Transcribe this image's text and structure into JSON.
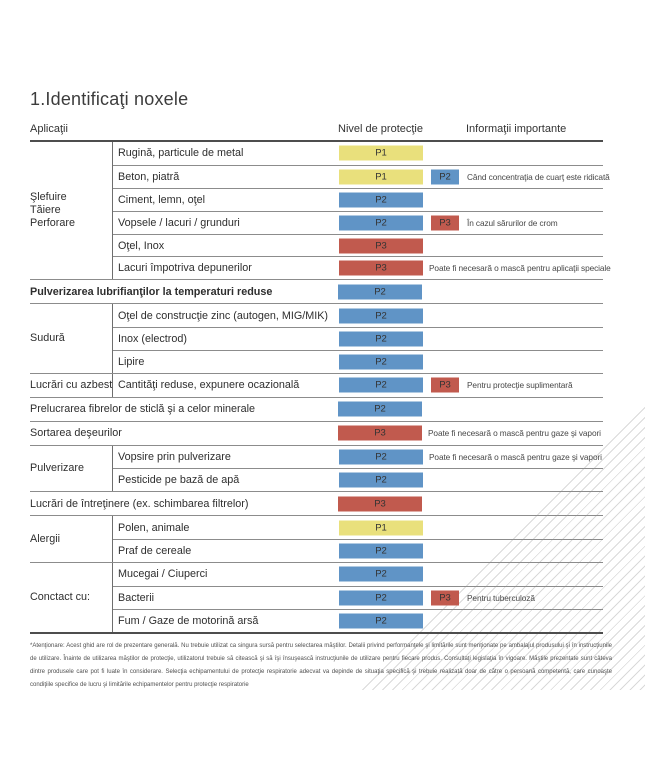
{
  "page": {
    "title": "1.Identificaţi noxele",
    "columns": {
      "applications": "Aplicaţii",
      "protection": "Nivel de protecţie",
      "info": "Informaţii importante"
    },
    "footnote": "*Atenţionare: Acest ghid are rol de prezentare generală. Nu trebuie utilizat ca singura sursă pentru selectarea măştilor. Detalii privind performanţele şi limitările sunt menţionate pe ambalajul produsului şi în instrucţiunile de utilizare. Înainte de utilizarea măştilor de protecţie, utilizatorul trebuie să citească şi să îşi însuşească instrucţiunile de utilizare pentru fiecare produs. Consultaţi legislaţia în vigoare. Măştile prezentate sunt câteva dintre produsele care pot fi luate în considerare. Selecţia echipamentului de protecţie respiratorie adecvat va depinde de situaţia specifică şi trebuie realizată doar de către o persoană competentă, care cunoaşte condiţiile specifice de lucru şi limitările echipamentelor pentru protecţie respiratorie"
  },
  "colors": {
    "p1": "#e9e07c",
    "p2": "#6094c6",
    "p3": "#c15a4e",
    "row_line": "#8c8c8c",
    "strong_line": "#4d4d4d"
  },
  "table": {
    "groups": [
      {
        "category": "Şlefuire\nTăiere\nPerforare",
        "rows": [
          {
            "label": "Rugină, particule de metal",
            "level": "P1"
          },
          {
            "label": "Beton, piatră",
            "level": "P1",
            "extra_level": "P2",
            "info": "Când concentraţia de cuarţ este ridicată"
          },
          {
            "label": "Ciment, lemn, oţel",
            "level": "P2"
          },
          {
            "label": "Vopsele / lacuri / grunduri",
            "level": "P2",
            "extra_level": "P3",
            "info": "În cazul sărurilor de crom"
          },
          {
            "label": "Oţel, Inox",
            "level": "P3"
          },
          {
            "label": "Lacuri împotriva depunerilor",
            "level": "P3",
            "info": "Poate fi necesară o mască pentru aplicaţii speciale"
          }
        ]
      },
      {
        "category": null,
        "bold": true,
        "rows": [
          {
            "label": "Pulverizarea lubrifianţilor la temperaturi reduse",
            "level": "P2"
          }
        ]
      },
      {
        "category": "Sudură",
        "rows": [
          {
            "label": "Oţel de construcţie zinc (autogen, MIG/MIK)",
            "level": "P2"
          },
          {
            "label": "Inox (electrod)",
            "level": "P2"
          },
          {
            "label": "Lipire",
            "level": "P2"
          }
        ]
      },
      {
        "category": "Lucrări cu azbest",
        "rows": [
          {
            "label": "Cantităţi reduse, expunere ocazională",
            "level": "P2",
            "extra_level": "P3",
            "info": "Pentru protecţie suplimentară"
          }
        ]
      },
      {
        "category": null,
        "rows": [
          {
            "label": "Prelucrarea fibrelor de sticlă şi a celor minerale",
            "level": "P2"
          }
        ]
      },
      {
        "category": null,
        "rows": [
          {
            "label": "Sortarea deşeurilor",
            "level": "P3",
            "info": "Poate fi necesară o mască pentru gaze şi vapori"
          }
        ]
      },
      {
        "category": "Pulverizare",
        "rows": [
          {
            "label": "Vopsire prin pulverizare",
            "level": "P2",
            "info": "Poate fi necesară o mască pentru gaze şi vapori"
          },
          {
            "label": "Pesticide pe bază de apă",
            "level": "P2"
          }
        ]
      },
      {
        "category": null,
        "rows": [
          {
            "label": "Lucrări de întreţinere (ex. schimbarea filtrelor)",
            "level": "P3"
          }
        ]
      },
      {
        "category": "Alergii",
        "rows": [
          {
            "label": "Polen, animale",
            "level": "P1"
          },
          {
            "label": "Praf de cereale",
            "level": "P2"
          }
        ]
      },
      {
        "category": "Conctact cu:",
        "rows": [
          {
            "label": "Mucegai / Ciuperci",
            "level": "P2"
          },
          {
            "label": "Bacterii",
            "level": "P2",
            "extra_level": "P3",
            "info": "Pentru tuberculoză"
          },
          {
            "label": "Fum / Gaze de motorină arsă",
            "level": "P2"
          }
        ]
      }
    ]
  }
}
